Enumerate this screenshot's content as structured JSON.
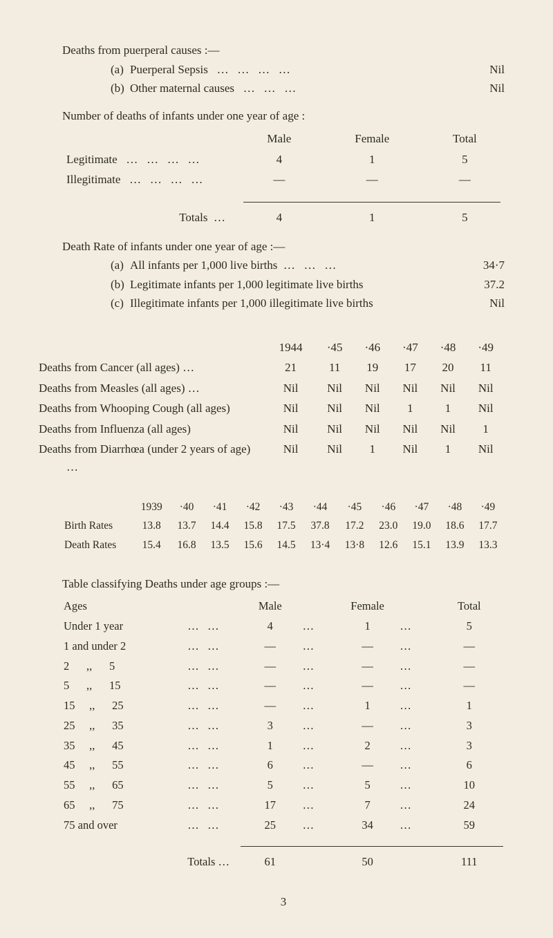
{
  "colors": {
    "bg": "#f2ede0",
    "text": "#2d2a20",
    "rule": "#3b372b"
  },
  "typography": {
    "family": "Georgia, Times New Roman, serif",
    "base_size_pt": 12,
    "line_height": 1.5
  },
  "heading1": "Deaths from puerperal causes :—",
  "sub_a": {
    "label": "(a)",
    "text": "Puerperal Sepsis",
    "value": "Nil"
  },
  "sub_b": {
    "label": "(b)",
    "text": "Other maternal causes",
    "value": "Nil"
  },
  "heading2": "Number of deaths of infants under one year of age :",
  "infant_table": {
    "headers": [
      "Male",
      "Female",
      "Total"
    ],
    "rows": [
      {
        "label": "Legitimate",
        "male": "4",
        "female": "1",
        "total": "5"
      },
      {
        "label": "Illegitimate",
        "male": "—",
        "female": "—",
        "total": "—"
      }
    ],
    "totals": {
      "label": "Totals",
      "male": "4",
      "female": "1",
      "total": "5"
    }
  },
  "heading3": "Death Rate of infants under one year of age :—",
  "rate_a": {
    "label": "(a)",
    "text": "All infants per 1,000 live births",
    "value": "34·7"
  },
  "rate_b": {
    "label": "(b)",
    "text": "Legitimate infants per 1,000 legitimate live births",
    "value": "37.2"
  },
  "rate_c": {
    "label": "(c)",
    "text": "Illegitimate infants per 1,000 illegitimate live births",
    "value": "Nil"
  },
  "cause_years": [
    "1944",
    "·45",
    "·46",
    "·47",
    "·48",
    "·49"
  ],
  "cause_rows": [
    {
      "label": "Deaths from Cancer (all ages) …",
      "v": [
        "21",
        "11",
        "19",
        "17",
        "20",
        "11"
      ]
    },
    {
      "label": "Deaths from Measles (all ages) …",
      "v": [
        "Nil",
        "Nil",
        "Nil",
        "Nil",
        "Nil",
        "Nil"
      ]
    },
    {
      "label": "Deaths from Whooping Cough (all ages)",
      "v": [
        "Nil",
        "Nil",
        "Nil",
        "1",
        "1",
        "Nil"
      ]
    },
    {
      "label": "Deaths from Influenza (all ages)",
      "v": [
        "Nil",
        "Nil",
        "Nil",
        "Nil",
        "Nil",
        "1"
      ]
    },
    {
      "label": "Deaths from Diarrhœa (under 2 years of age) …",
      "v": [
        "Nil",
        "Nil",
        "1",
        "Nil",
        "1",
        "Nil"
      ]
    }
  ],
  "rates_years": [
    "1939",
    "·40",
    "·41",
    "·42",
    "·43",
    "·44",
    "·45",
    "·46",
    "·47",
    "·48",
    "·49"
  ],
  "birth_rates": {
    "label": "Birth Rates",
    "v": [
      "13.8",
      "13.7",
      "14.4",
      "15.8",
      "17.5",
      "37.8",
      "17.2",
      "23.0",
      "19.0",
      "18.6",
      "17.7"
    ]
  },
  "death_rates": {
    "label": "Death Rates",
    "v": [
      "15.4",
      "16.8",
      "13.5",
      "15.6",
      "14.5",
      "13·4",
      "13·8",
      "12.6",
      "15.1",
      "13.9",
      "13.3"
    ]
  },
  "heading4": "Table classifying Deaths under age groups :—",
  "age_table": {
    "headers": [
      "Ages",
      "Male",
      "Female",
      "Total"
    ],
    "rows": [
      {
        "label": "Under 1 year",
        "m": "4",
        "f": "1",
        "t": "5"
      },
      {
        "label": "1 and under 2",
        "m": "—",
        "f": "—",
        "t": "—"
      },
      {
        "label": "2      ,,      5",
        "m": "—",
        "f": "—",
        "t": "—"
      },
      {
        "label": "5      ,,      15",
        "m": "—",
        "f": "—",
        "t": "—"
      },
      {
        "label": "15     ,,      25",
        "m": "—",
        "f": "1",
        "t": "1"
      },
      {
        "label": "25     ,,      35",
        "m": "3",
        "f": "—",
        "t": "3"
      },
      {
        "label": "35     ,,      45",
        "m": "1",
        "f": "2",
        "t": "3"
      },
      {
        "label": "45     ,,      55",
        "m": "6",
        "f": "—",
        "t": "6"
      },
      {
        "label": "55     ,,      65",
        "m": "5",
        "f": "5",
        "t": "10"
      },
      {
        "label": "65     ,,      75",
        "m": "17",
        "f": "7",
        "t": "24"
      },
      {
        "label": "75 and over",
        "m": "25",
        "f": "34",
        "t": "59"
      }
    ],
    "totals": {
      "label": "Totals …",
      "m": "61",
      "f": "50",
      "t": "111"
    }
  },
  "page_number": "3"
}
